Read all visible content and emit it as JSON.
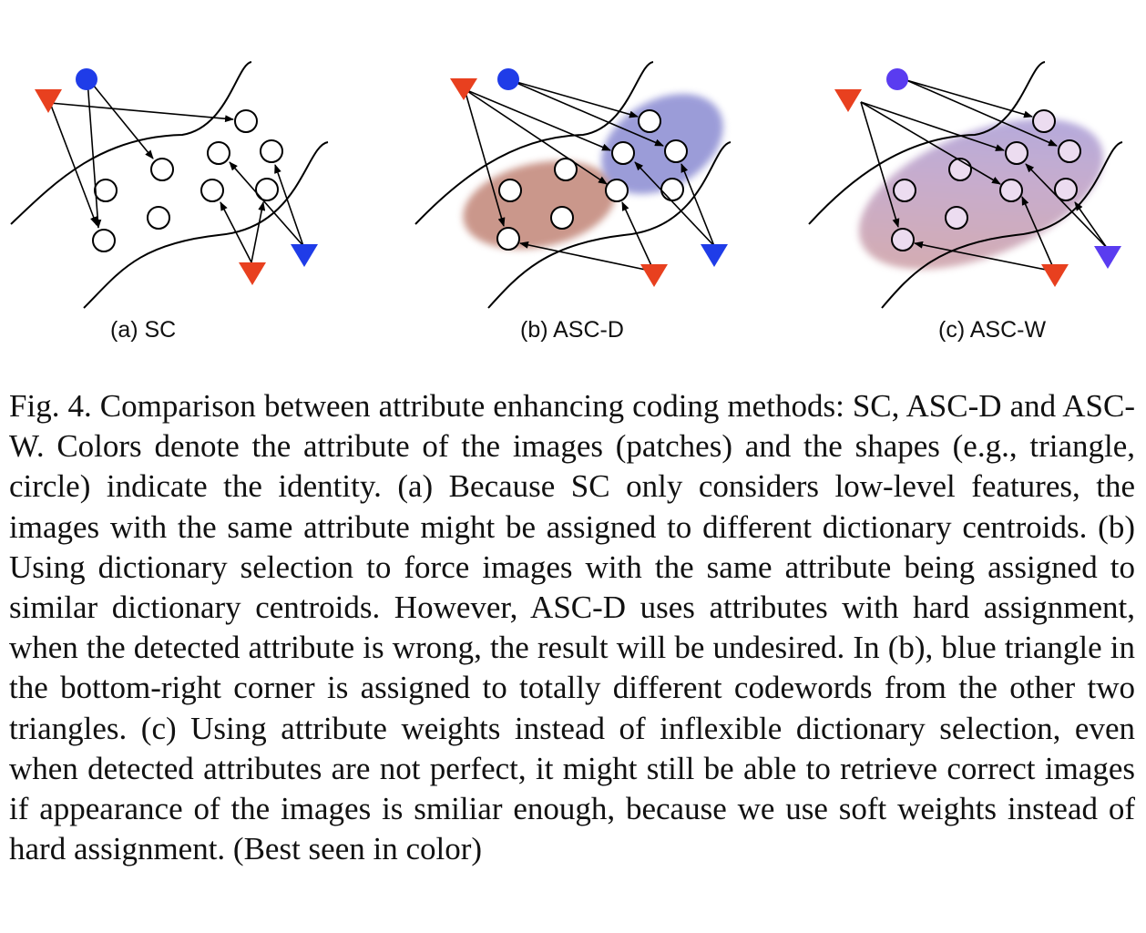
{
  "figure": {
    "panels": [
      {
        "label": "(a) SC"
      },
      {
        "label": "(b) ASC-D"
      },
      {
        "label": "(c) ASC-W"
      }
    ],
    "colors": {
      "red": "#e8401f",
      "blue": "#1f3ce8",
      "blue_c": "#5a3cf0",
      "attr_red_region": "#b97565",
      "attr_blue_region": "#7a7ccc"
    }
  },
  "caption": {
    "text": "Fig. 4.   Comparison between attribute enhancing coding methods: SC, ASC-D and ASC-W. Colors denote the attribute of the images (patches) and the shapes (e.g., triangle, circle) indicate the identity. (a) Because SC only considers low-level features, the images with the same attribute might be assigned to different dictionary centroids. (b) Using dictionary selection to force images with the same attribute being assigned to similar dictionary centroids. However, ASC-D uses attributes with hard assignment, when the detected attribute is wrong, the result will be undesired. In (b), blue triangle in the bottom-right corner is assigned to totally different codewords from the other two triangles. (c) Using attribute weights instead of inflexible dictionary selection, even when detected attributes are not perfect, it might still be able to retrieve correct images if appearance of the images is smiliar enough, because we use soft weights instead of hard assignment. (Best seen in color)"
  }
}
